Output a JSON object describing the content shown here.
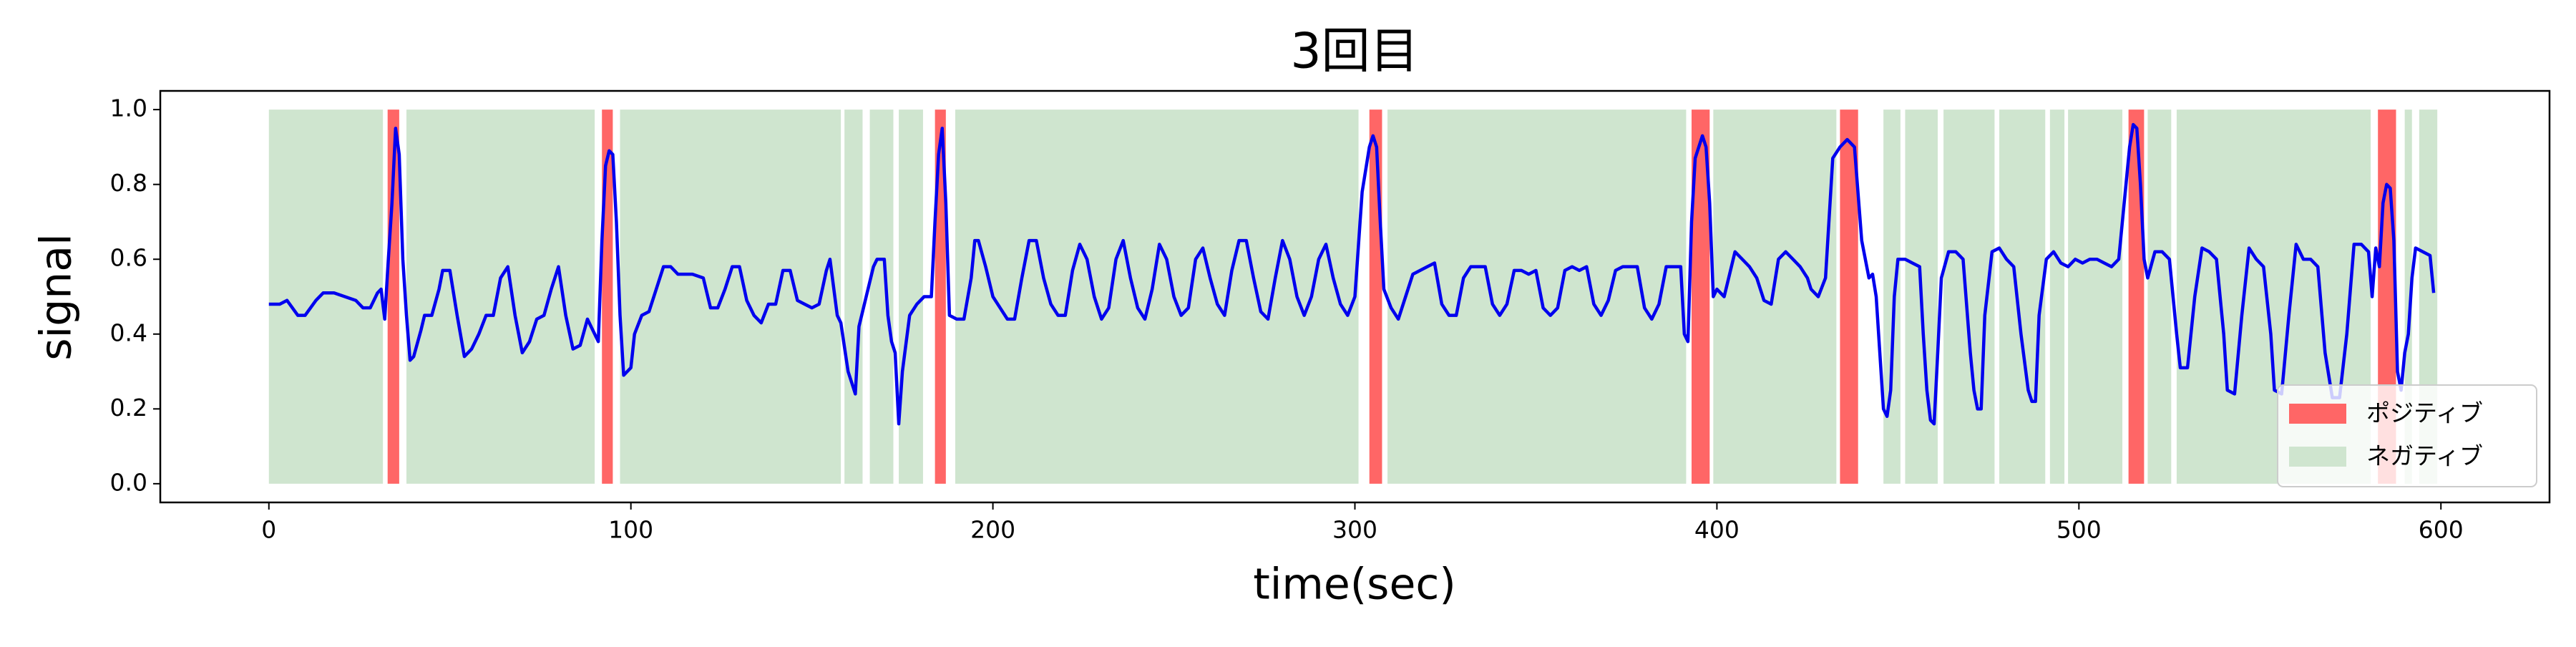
{
  "chart_data": {
    "type": "line",
    "title": "3回目",
    "x_label": "time(sec)",
    "y_label": "signal",
    "xlim": [
      -30,
      630
    ],
    "ylim": [
      -0.05,
      1.05
    ],
    "xticks": [
      0,
      100,
      200,
      300,
      400,
      500,
      600
    ],
    "yticks": [
      {
        "value": 0,
        "label": "0.0"
      },
      {
        "value": 0.2,
        "label": "0.2"
      },
      {
        "value": 0.4,
        "label": "0.4"
      },
      {
        "value": 0.6,
        "label": "0.6"
      },
      {
        "value": 0.8,
        "label": "0.8"
      },
      {
        "value": 1,
        "label": "1.0"
      }
    ],
    "legend": "lower right",
    "span_range": [
      0,
      1
    ],
    "spans": [
      {
        "name": "ポジティブ",
        "color": "#ff6666",
        "start": [
          32.8,
          92,
          184,
          304,
          393,
          434,
          513.7,
          582.6
        ],
        "end": [
          36,
          95,
          187,
          307.5,
          398,
          439,
          518,
          587.6
        ]
      },
      {
        "name": "ネガティブ",
        "color": "#cfe5cf",
        "start": [
          0,
          38,
          97,
          159,
          166,
          174,
          189.6,
          309,
          399,
          446,
          452,
          462.6,
          478,
          492,
          497,
          519,
          527,
          590,
          594
        ],
        "end": [
          31.5,
          90,
          158,
          164,
          172.5,
          180.7,
          301,
          391.5,
          433,
          450.7,
          461,
          476.7,
          490.7,
          496,
          512,
          525.5,
          580.6,
          592,
          599
        ]
      }
    ],
    "line": {
      "color": "#0000ee",
      "x": [
        0,
        3,
        5,
        8,
        10,
        13,
        15,
        18,
        21,
        24,
        26,
        28,
        30,
        31,
        32,
        33,
        34,
        35,
        36,
        37,
        38,
        39,
        40,
        42,
        43,
        45,
        47,
        48,
        50,
        52,
        54,
        56,
        58,
        60,
        62,
        64,
        66,
        68,
        70,
        72,
        74,
        76,
        78,
        80,
        82,
        84,
        86,
        88,
        90,
        91,
        92,
        93,
        94,
        95,
        96,
        97,
        98,
        100,
        101,
        103,
        105,
        107,
        109,
        111,
        113,
        117,
        120,
        122,
        124,
        126,
        128,
        130,
        132,
        134,
        136,
        138,
        140,
        142,
        144,
        146,
        148,
        150,
        152,
        154,
        155,
        157,
        158,
        160,
        161,
        162,
        163,
        165,
        167,
        168,
        170,
        171,
        172,
        173,
        174,
        175,
        177,
        179,
        181,
        183,
        184,
        185,
        186,
        187,
        188,
        190,
        192,
        194,
        195,
        196,
        198,
        200,
        202,
        204,
        206,
        208,
        210,
        212,
        214,
        216,
        218,
        220,
        222,
        224,
        226,
        228,
        230,
        232,
        234,
        236,
        238,
        240,
        242,
        244,
        246,
        248,
        250,
        252,
        254,
        256,
        258,
        260,
        262,
        264,
        266,
        268,
        270,
        272,
        274,
        276,
        278,
        280,
        282,
        284,
        286,
        288,
        290,
        292,
        294,
        296,
        298,
        300,
        302,
        304,
        305,
        306,
        307,
        308,
        310,
        312,
        314,
        316,
        318,
        320,
        322,
        324,
        326,
        328,
        330,
        332,
        334,
        336,
        338,
        340,
        342,
        344,
        346,
        348,
        350,
        352,
        354,
        356,
        358,
        360,
        362,
        364,
        366,
        368,
        370,
        372,
        374,
        376,
        378,
        380,
        382,
        384,
        386,
        388,
        390,
        391,
        392,
        393,
        394,
        396,
        397,
        398,
        399,
        400,
        402,
        404,
        405,
        407,
        409,
        411,
        413,
        415,
        417,
        419,
        421,
        423,
        425,
        426,
        428,
        430,
        432,
        434,
        436,
        438,
        440,
        442,
        443,
        444,
        445,
        446,
        447,
        448,
        449,
        450,
        452,
        454,
        456,
        457,
        458,
        459,
        460,
        461,
        462,
        464,
        466,
        468,
        470,
        471,
        472,
        473,
        474,
        476,
        478,
        480,
        482,
        484,
        486,
        487,
        488,
        489,
        491,
        493,
        495,
        497,
        499,
        501,
        503,
        505,
        507,
        509,
        511,
        512,
        514,
        515,
        516,
        517,
        518,
        519,
        521,
        523,
        525,
        527,
        528,
        530,
        532,
        534,
        536,
        538,
        540,
        541,
        543,
        545,
        547,
        549,
        551,
        553,
        554,
        556,
        558,
        560,
        562,
        564,
        566,
        568,
        570,
        572,
        574,
        576,
        578,
        580,
        581,
        582,
        583,
        584,
        585,
        586,
        587,
        588,
        589,
        590,
        591,
        592,
        593,
        595,
        597,
        598
      ],
      "values": [
        0.48,
        0.48,
        0.49,
        0.45,
        0.45,
        0.49,
        0.51,
        0.51,
        0.5,
        0.49,
        0.47,
        0.47,
        0.51,
        0.52,
        0.44,
        0.6,
        0.75,
        0.95,
        0.88,
        0.6,
        0.45,
        0.33,
        0.34,
        0.41,
        0.45,
        0.45,
        0.52,
        0.57,
        0.57,
        0.45,
        0.34,
        0.36,
        0.4,
        0.45,
        0.45,
        0.55,
        0.58,
        0.45,
        0.35,
        0.38,
        0.44,
        0.45,
        0.52,
        0.58,
        0.45,
        0.36,
        0.37,
        0.44,
        0.4,
        0.38,
        0.65,
        0.85,
        0.89,
        0.88,
        0.7,
        0.45,
        0.29,
        0.31,
        0.4,
        0.45,
        0.46,
        0.52,
        0.58,
        0.58,
        0.56,
        0.56,
        0.55,
        0.47,
        0.47,
        0.52,
        0.58,
        0.58,
        0.49,
        0.45,
        0.43,
        0.48,
        0.48,
        0.57,
        0.57,
        0.49,
        0.48,
        0.47,
        0.48,
        0.57,
        0.6,
        0.45,
        0.43,
        0.3,
        0.27,
        0.24,
        0.42,
        0.5,
        0.58,
        0.6,
        0.6,
        0.45,
        0.38,
        0.35,
        0.16,
        0.3,
        0.45,
        0.48,
        0.5,
        0.5,
        0.7,
        0.88,
        0.95,
        0.75,
        0.45,
        0.44,
        0.44,
        0.55,
        0.65,
        0.65,
        0.58,
        0.5,
        0.47,
        0.44,
        0.44,
        0.55,
        0.65,
        0.65,
        0.55,
        0.48,
        0.45,
        0.45,
        0.57,
        0.64,
        0.6,
        0.5,
        0.44,
        0.47,
        0.6,
        0.65,
        0.55,
        0.47,
        0.44,
        0.52,
        0.64,
        0.6,
        0.5,
        0.45,
        0.47,
        0.6,
        0.63,
        0.55,
        0.48,
        0.45,
        0.57,
        0.65,
        0.65,
        0.55,
        0.46,
        0.44,
        0.55,
        0.65,
        0.6,
        0.5,
        0.45,
        0.5,
        0.6,
        0.64,
        0.55,
        0.48,
        0.45,
        0.5,
        0.78,
        0.9,
        0.93,
        0.9,
        0.7,
        0.52,
        0.47,
        0.44,
        0.5,
        0.56,
        0.57,
        0.58,
        0.59,
        0.48,
        0.45,
        0.45,
        0.55,
        0.58,
        0.58,
        0.58,
        0.48,
        0.45,
        0.48,
        0.57,
        0.57,
        0.56,
        0.57,
        0.47,
        0.45,
        0.47,
        0.57,
        0.58,
        0.57,
        0.58,
        0.48,
        0.45,
        0.49,
        0.57,
        0.58,
        0.58,
        0.58,
        0.47,
        0.44,
        0.48,
        0.58,
        0.58,
        0.58,
        0.4,
        0.38,
        0.7,
        0.87,
        0.93,
        0.9,
        0.75,
        0.5,
        0.52,
        0.5,
        0.58,
        0.62,
        0.6,
        0.58,
        0.55,
        0.49,
        0.48,
        0.6,
        0.62,
        0.6,
        0.58,
        0.55,
        0.52,
        0.5,
        0.55,
        0.87,
        0.9,
        0.92,
        0.9,
        0.65,
        0.55,
        0.56,
        0.5,
        0.35,
        0.2,
        0.18,
        0.25,
        0.5,
        0.6,
        0.6,
        0.59,
        0.58,
        0.4,
        0.25,
        0.17,
        0.16,
        0.35,
        0.55,
        0.62,
        0.62,
        0.6,
        0.35,
        0.25,
        0.2,
        0.2,
        0.45,
        0.62,
        0.63,
        0.6,
        0.58,
        0.4,
        0.25,
        0.22,
        0.22,
        0.45,
        0.6,
        0.62,
        0.59,
        0.58,
        0.6,
        0.59,
        0.6,
        0.6,
        0.59,
        0.58,
        0.6,
        0.7,
        0.9,
        0.96,
        0.95,
        0.8,
        0.6,
        0.55,
        0.62,
        0.62,
        0.6,
        0.4,
        0.31,
        0.31,
        0.5,
        0.63,
        0.62,
        0.6,
        0.4,
        0.25,
        0.24,
        0.45,
        0.63,
        0.6,
        0.58,
        0.4,
        0.25,
        0.24,
        0.45,
        0.64,
        0.6,
        0.6,
        0.58,
        0.35,
        0.23,
        0.23,
        0.4,
        0.64,
        0.64,
        0.62,
        0.5,
        0.63,
        0.58,
        0.75,
        0.8,
        0.79,
        0.65,
        0.3,
        0.25,
        0.35,
        0.4,
        0.55,
        0.63,
        0.62,
        0.61,
        0.51
      ]
    }
  }
}
